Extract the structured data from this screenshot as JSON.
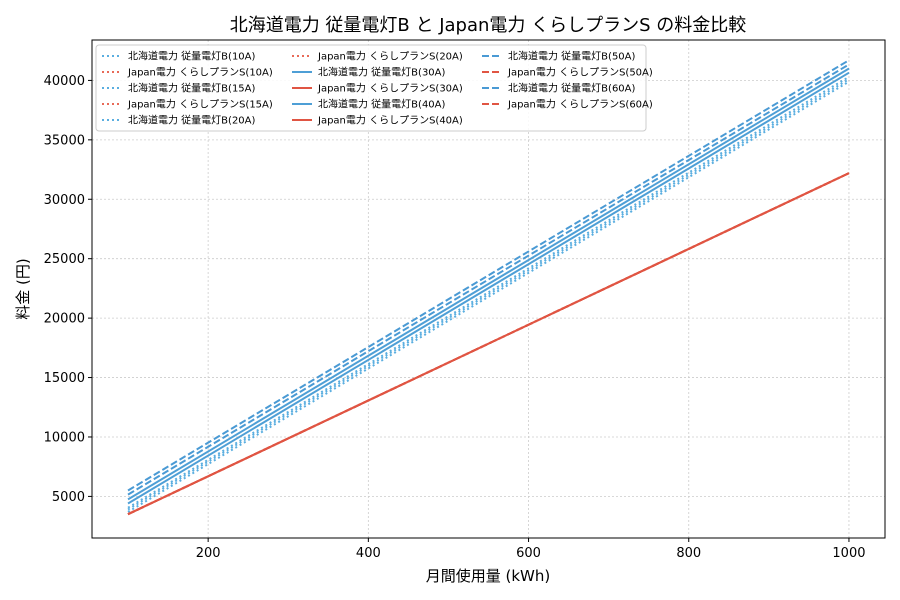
{
  "chart_data": {
    "type": "line",
    "title": "北海道電力 従量電灯B と Japan電力 くらしプランS の料金比較",
    "xlabel": "月間使用量 (kWh)",
    "ylabel": "料金 (円)",
    "xlim": [
      55,
      1045
    ],
    "ylim": [
      1500,
      43400
    ],
    "xticks": [
      200,
      400,
      600,
      800,
      1000
    ],
    "yticks": [
      5000,
      10000,
      15000,
      20000,
      25000,
      30000,
      35000,
      40000
    ],
    "grid": true,
    "legend_position": "top-left",
    "legend_columns": 3,
    "x": [
      100,
      1000
    ],
    "series": [
      {
        "name": "北海道電力 従量電灯B(10A)",
        "values": [
          3700,
          39900
        ],
        "color": "#5aaee0",
        "style": "dotted"
      },
      {
        "name": "Japan電力 くらしプランS(10A)",
        "values": [
          3500,
          32200
        ],
        "color": "#e86a58",
        "style": "dotted"
      },
      {
        "name": "北海道電力 従量電灯B(15A)",
        "values": [
          3900,
          40100
        ],
        "color": "#5aaee0",
        "style": "dotted"
      },
      {
        "name": "Japan電力 くらしプランS(15A)",
        "values": [
          3500,
          32200
        ],
        "color": "#e86a58",
        "style": "dotted"
      },
      {
        "name": "北海道電力 従量電灯B(20A)",
        "values": [
          4050,
          40300
        ],
        "color": "#5aaee0",
        "style": "dotted"
      },
      {
        "name": "Japan電力 くらしプランS(20A)",
        "values": [
          3500,
          32200
        ],
        "color": "#e86a58",
        "style": "dotted"
      },
      {
        "name": "北海道電力 従量電灯B(30A)",
        "values": [
          4400,
          40650
        ],
        "color": "#4e9fd6",
        "style": "solid"
      },
      {
        "name": "Japan電力 くらしプランS(30A)",
        "values": [
          3500,
          32200
        ],
        "color": "#e05543",
        "style": "solid"
      },
      {
        "name": "北海道電力 従量電灯B(40A)",
        "values": [
          4750,
          41000
        ],
        "color": "#4e9fd6",
        "style": "solid"
      },
      {
        "name": "Japan電力 くらしプランS(40A)",
        "values": [
          3500,
          32200
        ],
        "color": "#e05543",
        "style": "solid"
      },
      {
        "name": "北海道電力 従量電灯B(50A)",
        "values": [
          5150,
          41350
        ],
        "color": "#4a9ad4",
        "style": "dashed"
      },
      {
        "name": "Japan電力 くらしプランS(50A)",
        "values": [
          3500,
          32200
        ],
        "color": "#e05543",
        "style": "dashed"
      },
      {
        "name": "北海道電力 従量電灯B(60A)",
        "values": [
          5500,
          41700
        ],
        "color": "#4a9ad4",
        "style": "dashed"
      },
      {
        "name": "Japan電力 くらしプランS(60A)",
        "values": [
          3500,
          32200
        ],
        "color": "#e05543",
        "style": "dashed"
      }
    ]
  }
}
